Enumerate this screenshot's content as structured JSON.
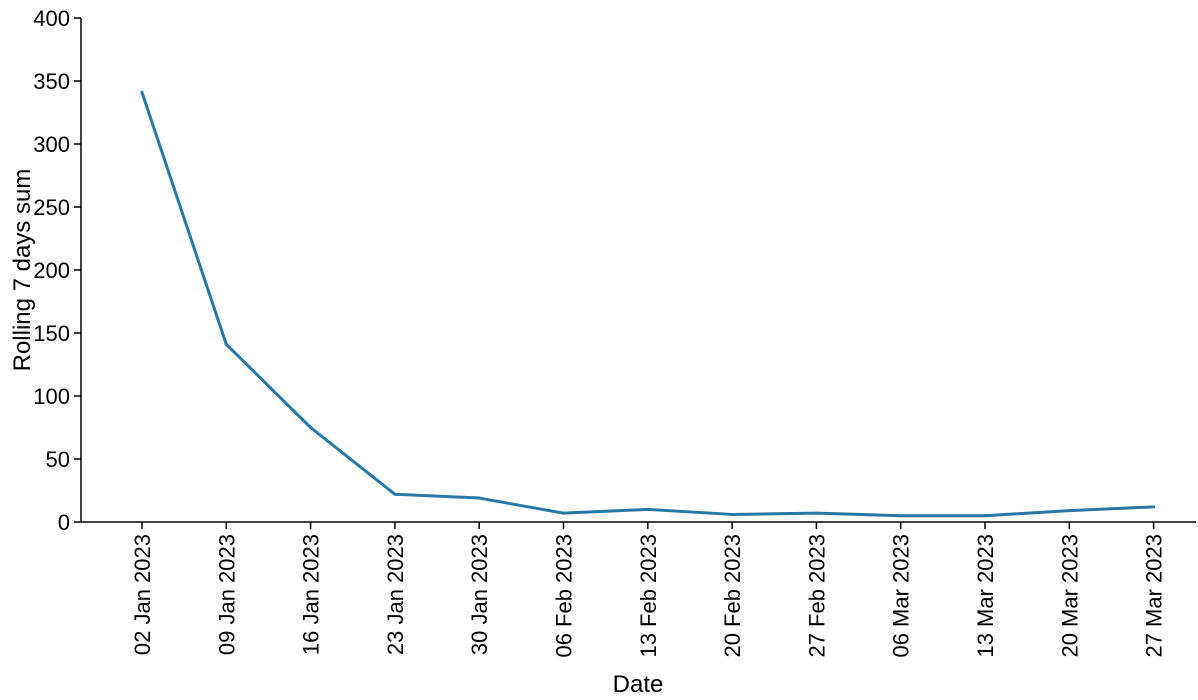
{
  "chart_data": {
    "type": "line",
    "title": "",
    "xlabel": "Date",
    "ylabel": "Rolling 7 days sum",
    "ylim": [
      0,
      400
    ],
    "yticks": [
      0,
      50,
      100,
      150,
      200,
      250,
      300,
      350,
      400
    ],
    "grid": false,
    "legend": "none",
    "series_color": "#2678a6",
    "x": [
      "02 Jan 2023",
      "09 Jan 2023",
      "16 Jan 2023",
      "23 Jan 2023",
      "30 Jan 2023",
      "06 Feb 2023",
      "13 Feb 2023",
      "20 Feb 2023",
      "27 Feb 2023",
      "06 Mar 2023",
      "13 Mar 2023",
      "20 Mar 2023",
      "27 Mar 2023"
    ],
    "values": [
      341,
      141,
      75,
      22,
      19,
      7,
      10,
      6,
      7,
      5,
      5,
      9,
      12
    ]
  }
}
